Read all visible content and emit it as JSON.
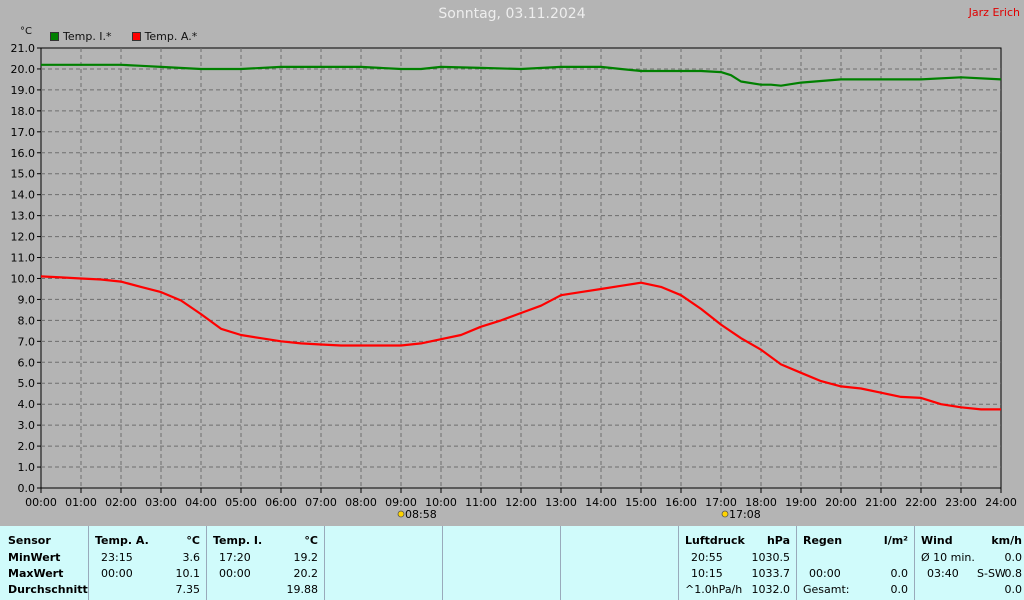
{
  "header": {
    "title": "Sonntag, 03.11.2024",
    "author": "Jarz Erich",
    "unit": "°C"
  },
  "colors": {
    "inside": "#008000",
    "outside": "#ff0000",
    "background": "#b4b4b4",
    "footer": "#d0fbfb"
  },
  "chart_data": {
    "type": "line",
    "ylabel": "°C",
    "ylim": [
      0.0,
      21.0
    ],
    "yticks": [
      "0.0",
      "1.0",
      "2.0",
      "3.0",
      "4.0",
      "5.0",
      "6.0",
      "7.0",
      "8.0",
      "9.0",
      "10.0",
      "11.0",
      "12.0",
      "13.0",
      "14.0",
      "15.0",
      "16.0",
      "17.0",
      "18.0",
      "19.0",
      "20.0",
      "21.0"
    ],
    "xticks": [
      "00:00",
      "01:00",
      "02:00",
      "03:00",
      "04:00",
      "05:00",
      "06:00",
      "07:00",
      "08:00",
      "09:00",
      "10:00",
      "11:00",
      "12:00",
      "13:00",
      "14:00",
      "15:00",
      "16:00",
      "17:00",
      "18:00",
      "19:00",
      "20:00",
      "21:00",
      "22:00",
      "23:00",
      "24:00"
    ],
    "grid": true,
    "legend_position": "top-left",
    "annotations": [
      {
        "x": 9.0,
        "label": "08:58",
        "icon": "sunrise-icon"
      },
      {
        "x": 17.1,
        "label": "17:08",
        "icon": "sunset-icon"
      }
    ],
    "series": [
      {
        "name": "Temp. I.*",
        "color": "#008000",
        "x": [
          0,
          1,
          2,
          2.5,
          3,
          4,
          5,
          6,
          7,
          8,
          9,
          9.5,
          10,
          11,
          12,
          13,
          14,
          14.5,
          15,
          16,
          16.5,
          17,
          17.25,
          17.5,
          18,
          18.25,
          18.5,
          19,
          20,
          21,
          22,
          23,
          24
        ],
        "values": [
          20.2,
          20.2,
          20.2,
          20.15,
          20.1,
          20.0,
          20.0,
          20.1,
          20.1,
          20.1,
          20.0,
          20.0,
          20.1,
          20.05,
          20.0,
          20.1,
          20.1,
          20.0,
          19.9,
          19.9,
          19.9,
          19.85,
          19.7,
          19.4,
          19.25,
          19.25,
          19.2,
          19.35,
          19.5,
          19.5,
          19.5,
          19.6,
          19.5
        ]
      },
      {
        "name": "Temp. A.*",
        "color": "#ff0000",
        "x": [
          0,
          0.5,
          1,
          1.5,
          2,
          2.5,
          3,
          3.5,
          4,
          4.5,
          5,
          5.5,
          6,
          6.5,
          7,
          7.5,
          8,
          8.5,
          9,
          9.5,
          10,
          10.5,
          11,
          11.5,
          12,
          12.5,
          13,
          13.5,
          14,
          14.5,
          15,
          15.5,
          16,
          16.5,
          17,
          17.5,
          18,
          18.5,
          19,
          19.5,
          20,
          20.5,
          21,
          21.5,
          22,
          22.5,
          23,
          23.5,
          24
        ],
        "values": [
          10.1,
          10.05,
          10.0,
          9.95,
          9.85,
          9.6,
          9.35,
          8.95,
          8.3,
          7.6,
          7.3,
          7.15,
          7.0,
          6.9,
          6.85,
          6.8,
          6.8,
          6.8,
          6.8,
          6.9,
          7.1,
          7.3,
          7.7,
          8.0,
          8.35,
          8.7,
          9.2,
          9.35,
          9.5,
          9.65,
          9.8,
          9.6,
          9.2,
          8.55,
          7.8,
          7.15,
          6.6,
          5.9,
          5.5,
          5.1,
          4.85,
          4.75,
          4.55,
          4.35,
          4.3,
          4.0,
          3.85,
          3.75,
          3.75
        ]
      }
    ]
  },
  "footer": {
    "sensor": {
      "header": "Sensor",
      "rows": [
        "MinWert",
        "MaxWert",
        "Durchschnitt"
      ]
    },
    "outside": {
      "header": "Temp. A.",
      "unit": "°C",
      "min_time": "23:15",
      "min_val": "3.6",
      "max_time": "00:00",
      "max_val": "10.1",
      "avg": "7.35"
    },
    "inside": {
      "header": "Temp. I.",
      "unit": "°C",
      "min_time": "17:20",
      "min_val": "19.2",
      "max_time": "00:00",
      "max_val": "20.2",
      "avg": "19.88"
    },
    "pressure": {
      "header": "Luftdruck",
      "unit": "hPa",
      "min_time": "20:55",
      "min_val": "1030.5",
      "max_time": "10:15",
      "max_val": "1033.7",
      "trend_label": "^1.0hPa/h",
      "current": "1032.0"
    },
    "rain": {
      "header": "Regen",
      "unit": "l/m²",
      "max_time": "00:00",
      "max_val": "0.0",
      "total_label": "Gesamt:",
      "total_val": "0.0"
    },
    "wind": {
      "header": "Wind",
      "unit": "km/h",
      "avg_label": "Ø 10 min.",
      "avg_val": "0.0",
      "max_time": "03:40",
      "max_dir": "S-SW",
      "max_val": "0.8",
      "extra_val": "0.0"
    }
  }
}
